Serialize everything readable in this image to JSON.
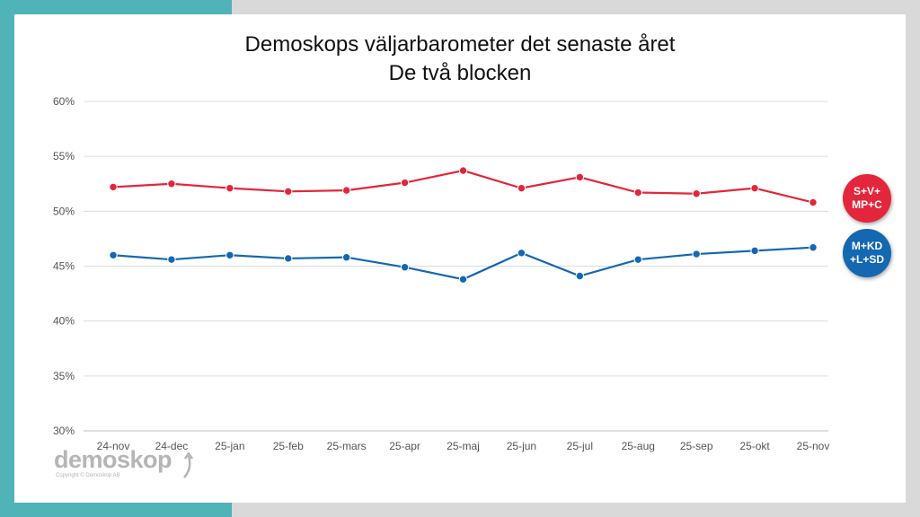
{
  "title_line1": "Demoskops väljarbarometer det senaste året",
  "title_line2": "De två blocken",
  "colors": {
    "red_bloc": "#e3263b",
    "blue_bloc": "#1467b1",
    "accent_teal": "#4fb3b8"
  },
  "logo": {
    "word": "demoskop",
    "copyright": "Copyright © Demoskop AB"
  },
  "badges": {
    "red": {
      "line1": "S+V+",
      "line2": "MP+C"
    },
    "blue": {
      "line1": "M+KD",
      "line2": "+L+SD"
    }
  },
  "chart_data": {
    "type": "line",
    "categories": [
      "24-nov",
      "24-dec",
      "25-jan",
      "25-feb",
      "25-mars",
      "25-apr",
      "25-maj",
      "25-jun",
      "25-jul",
      "25-aug",
      "25-sep",
      "25-okt",
      "25-nov"
    ],
    "series": [
      {
        "name": "S+V+MP+C",
        "values": [
          52.2,
          52.5,
          52.1,
          51.8,
          51.9,
          52.6,
          53.7,
          52.1,
          53.1,
          51.7,
          51.6,
          52.1,
          50.8
        ]
      },
      {
        "name": "M+KD+L+SD",
        "values": [
          46.0,
          45.6,
          46.0,
          45.7,
          45.8,
          44.9,
          43.8,
          46.2,
          44.1,
          45.6,
          46.1,
          46.4,
          46.7
        ]
      }
    ],
    "ylim": [
      30,
      60
    ],
    "yticks": [
      30,
      35,
      40,
      45,
      50,
      55,
      60
    ],
    "ytick_labels": [
      "30%",
      "35%",
      "40%",
      "45%",
      "50%",
      "55%",
      "60%"
    ],
    "grid": true,
    "legend": "right, as colored circle badges"
  }
}
